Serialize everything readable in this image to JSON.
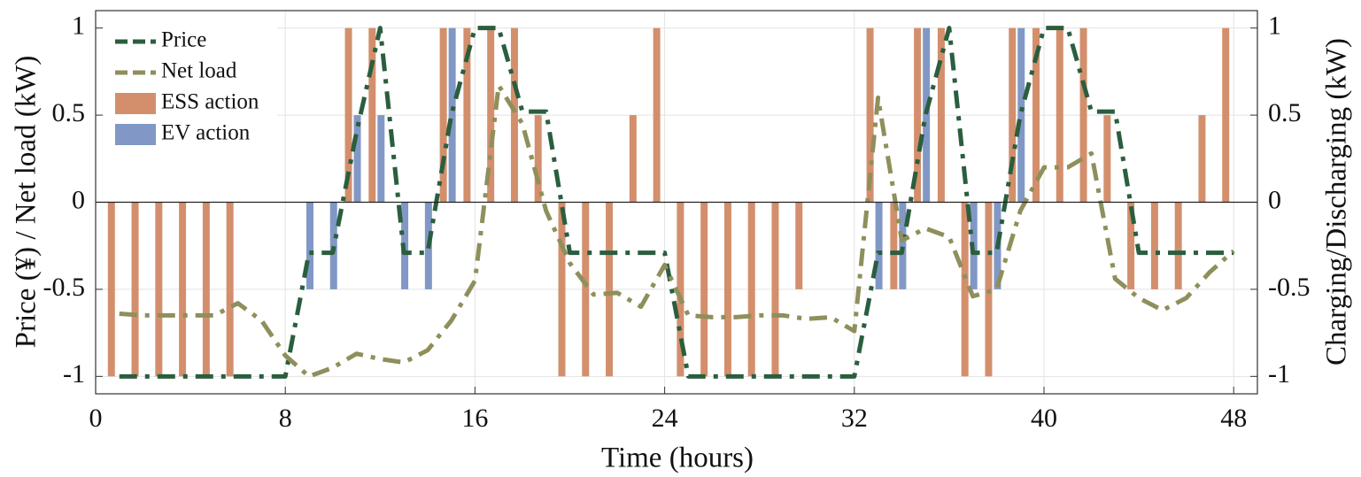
{
  "chart_data": {
    "type": "combo",
    "xlabel": "Time (hours)",
    "ylabel": "Price (¥) / Net load (kW)",
    "y2label": "Charging/Discharging (kW)",
    "x": [
      1,
      2,
      3,
      4,
      5,
      6,
      7,
      8,
      9,
      10,
      11,
      12,
      13,
      14,
      15,
      16,
      17,
      18,
      19,
      20,
      21,
      22,
      23,
      24,
      25,
      26,
      27,
      28,
      29,
      30,
      31,
      32,
      33,
      34,
      35,
      36,
      37,
      38,
      39,
      40,
      41,
      42,
      43,
      44,
      45,
      46,
      47,
      48
    ],
    "xlim": [
      0,
      49
    ],
    "xticks": [
      0,
      8,
      16,
      24,
      32,
      40,
      48
    ],
    "ylim": [
      -1.1,
      1.1
    ],
    "yticks": [
      -1,
      -0.5,
      0,
      0.5,
      1
    ],
    "y2lim": [
      -1.1,
      1.1
    ],
    "y2ticks": [
      -1,
      -0.5,
      0,
      0.5,
      1
    ],
    "grid": true,
    "legend": "upper left",
    "series": [
      {
        "name": "ESS action",
        "type": "bar",
        "axis": "y2",
        "color": "#d38f6c",
        "values": [
          -1,
          -1,
          -1,
          -1,
          -1,
          -1,
          0,
          0,
          0,
          0,
          1,
          1,
          0,
          0,
          1,
          1,
          1,
          1,
          0.5,
          -1,
          -1,
          -1,
          0.5,
          1,
          -1,
          -1,
          -1,
          -1,
          -1,
          -0.5,
          0,
          0,
          1,
          -0.5,
          1,
          1,
          -1,
          -1,
          1,
          1,
          1,
          1,
          0.5,
          -0.5,
          -0.5,
          -0.5,
          0.5,
          1
        ]
      },
      {
        "name": "EV action",
        "type": "bar",
        "axis": "y2",
        "color": "#8198c6",
        "values": [
          0,
          0,
          0,
          0,
          0,
          0,
          0,
          0,
          -0.5,
          -0.5,
          0.5,
          0.5,
          -0.5,
          -0.5,
          1,
          0,
          0,
          0,
          0,
          0,
          0,
          0,
          0,
          0,
          0,
          0,
          0,
          0,
          0,
          0,
          0,
          0,
          -0.5,
          -0.5,
          1,
          0,
          -0.5,
          -0.5,
          1,
          0,
          0,
          0,
          0,
          0,
          0,
          0,
          0,
          0
        ]
      },
      {
        "name": "Price",
        "type": "line",
        "color": "#2a5e3e",
        "values": [
          -1,
          -1,
          -1,
          -1,
          -1,
          -1,
          -1,
          -1,
          -0.29,
          -0.29,
          0.4,
          1,
          -0.29,
          -0.29,
          0.5,
          1,
          1,
          0.52,
          0.52,
          -0.29,
          -0.29,
          -0.29,
          -0.29,
          -0.29,
          -1,
          -1,
          -1,
          -1,
          -1,
          -1,
          -1,
          -1,
          -0.29,
          -0.29,
          0.5,
          1,
          -0.29,
          -0.29,
          0.5,
          1,
          1,
          0.52,
          0.52,
          -0.29,
          -0.29,
          -0.29,
          -0.29,
          -0.29
        ]
      },
      {
        "name": "Net load",
        "type": "line",
        "color": "#8f8f5c",
        "values": [
          -0.64,
          -0.65,
          -0.65,
          -0.65,
          -0.65,
          -0.58,
          -0.68,
          -0.88,
          -1,
          -0.95,
          -0.87,
          -0.9,
          -0.92,
          -0.85,
          -0.68,
          -0.45,
          0.67,
          0.45,
          -0.05,
          -0.35,
          -0.53,
          -0.52,
          -0.6,
          -0.36,
          -0.65,
          -0.66,
          -0.66,
          -0.65,
          -0.65,
          -0.67,
          -0.66,
          -0.74,
          0.6,
          -0.22,
          -0.15,
          -0.2,
          -0.54,
          -0.5,
          -0.05,
          0.2,
          0.2,
          0.28,
          -0.44,
          -0.55,
          -0.62,
          -0.55,
          -0.4,
          -0.28
        ]
      }
    ]
  }
}
